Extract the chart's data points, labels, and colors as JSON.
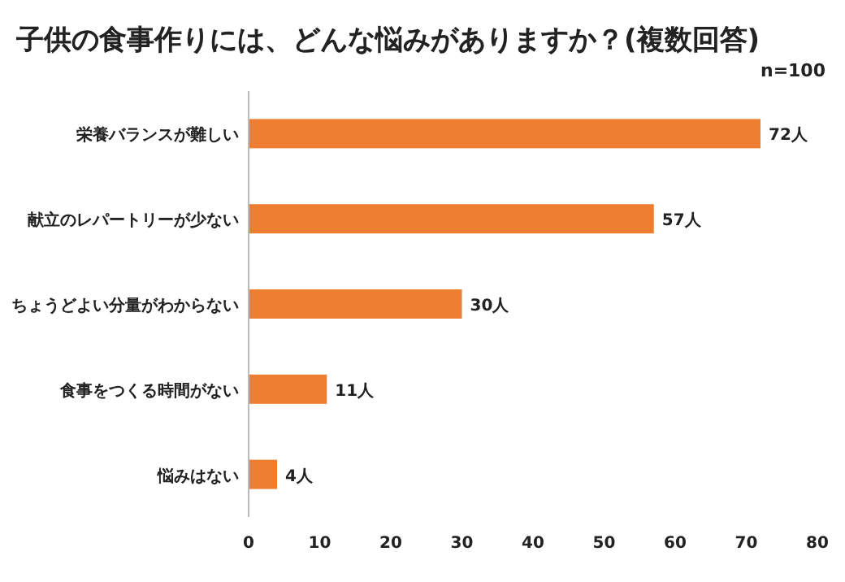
{
  "chart_data": {
    "type": "bar",
    "orientation": "horizontal",
    "title": "子供の食事作りには、どんな悩みがありますか？(複数回答)",
    "annotations": [
      "n=100"
    ],
    "categories": [
      "栄養バランスが難しい",
      "献立のレパートリーが少ない",
      "ちょうどよい分量がわからない",
      "食事をつくる時間がない",
      "悩みはない"
    ],
    "values": [
      72,
      57,
      30,
      11,
      4
    ],
    "value_labels": [
      "72人",
      "57人",
      "30人",
      "11人",
      "4人"
    ],
    "color": "#ed7d31",
    "xlim": [
      0,
      80
    ],
    "xticks": [
      0,
      10,
      20,
      30,
      40,
      50,
      60,
      70,
      80
    ]
  }
}
